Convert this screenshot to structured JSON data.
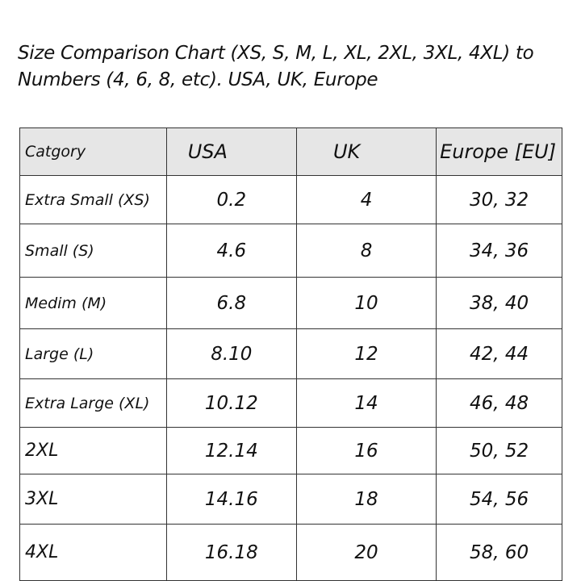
{
  "title": "Size Comparison Chart (XS, S, M, L, XL, 2XL, 3XL, 4XL) to Numbers (4, 6, 8, etc). USA, UK, Europe",
  "table": {
    "headers": [
      "Catgory",
      "USA",
      "UK",
      "Europe [EU]"
    ],
    "rows": [
      [
        "Extra Small (XS)",
        "0.2",
        "4",
        "30, 32"
      ],
      [
        "Small (S)",
        "4.6",
        "8",
        "34, 36"
      ],
      [
        "Medim (M)",
        "6.8",
        "10",
        "38, 40"
      ],
      [
        "Large (L)",
        "8.10",
        "12",
        "42, 44"
      ],
      [
        "Extra Large (XL)",
        "10.12",
        "14",
        "46, 48"
      ],
      [
        "2XL",
        "12.14",
        "16",
        "50, 52"
      ],
      [
        "3XL",
        "14.16",
        "18",
        "54, 56"
      ],
      [
        "4XL",
        "16.18",
        "20",
        "58, 60"
      ]
    ],
    "header_bg": "#e6e6e6"
  }
}
